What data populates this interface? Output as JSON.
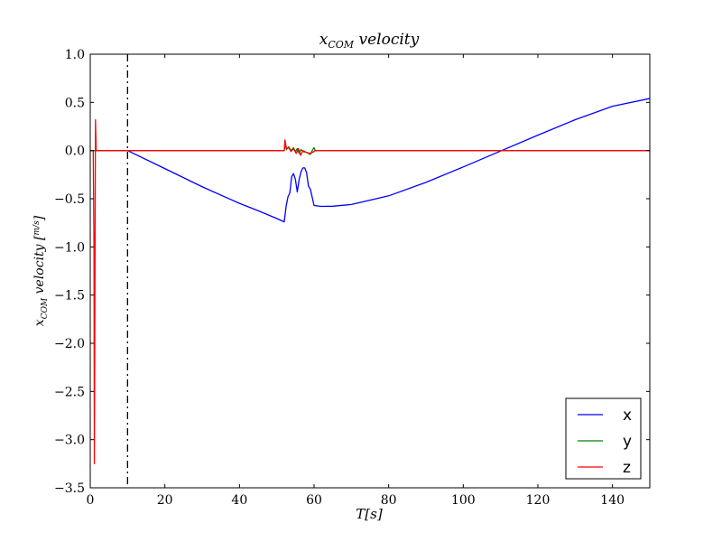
{
  "chart_data": {
    "type": "line",
    "title": "x_COM velocity",
    "title_main": "x",
    "title_sub": "COM",
    "title_rest": " velocity",
    "xlabel_main": "T",
    "xlabel_unit": "[s]",
    "ylabel_main": "x",
    "ylabel_sub": "COM",
    "ylabel_rest": " velocity [",
    "ylabel_unit_num": "m",
    "ylabel_unit_den": "s",
    "ylabel_close": "]",
    "xlim": [
      0,
      150
    ],
    "ylim": [
      -3.5,
      1.0
    ],
    "xticks": [
      0,
      20,
      40,
      60,
      80,
      100,
      120,
      140
    ],
    "yticks": [
      1.0,
      0.5,
      0.0,
      -0.5,
      -1.0,
      -1.5,
      -2.0,
      -2.5,
      -3.0,
      -3.5
    ],
    "ytick_labels": [
      "1.0",
      "0.5",
      "0.0",
      "−0.5",
      "−1.0",
      "−1.5",
      "−2.0",
      "−2.5",
      "−3.0",
      "−3.5"
    ],
    "xtick_labels": [
      "0",
      "20",
      "40",
      "60",
      "80",
      "100",
      "120",
      "140"
    ],
    "grid": false,
    "legend_position": "bottom-right",
    "vline": {
      "x": 10,
      "style": "dash-dot",
      "color": "#000000"
    },
    "series": [
      {
        "name": "x",
        "color": "#0000ff",
        "points": [
          [
            0,
            0
          ],
          [
            10,
            0
          ],
          [
            20,
            -0.187
          ],
          [
            30,
            -0.376
          ],
          [
            40,
            -0.548
          ],
          [
            45,
            -0.624
          ],
          [
            50,
            -0.705
          ],
          [
            52,
            -0.74
          ],
          [
            52.5,
            -0.58
          ],
          [
            53,
            -0.48
          ],
          [
            53.5,
            -0.44
          ],
          [
            54,
            -0.27
          ],
          [
            54.5,
            -0.24
          ],
          [
            55,
            -0.3
          ],
          [
            55.5,
            -0.43
          ],
          [
            56,
            -0.3
          ],
          [
            56.5,
            -0.22
          ],
          [
            57,
            -0.18
          ],
          [
            57.5,
            -0.18
          ],
          [
            58,
            -0.23
          ],
          [
            58.5,
            -0.37
          ],
          [
            59,
            -0.4
          ],
          [
            60,
            -0.57
          ],
          [
            62,
            -0.58
          ],
          [
            65,
            -0.578
          ],
          [
            70,
            -0.56
          ],
          [
            80,
            -0.47
          ],
          [
            90,
            -0.33
          ],
          [
            100,
            -0.17
          ],
          [
            110,
            -0.005
          ],
          [
            120,
            0.16
          ],
          [
            130,
            0.32
          ],
          [
            140,
            0.46
          ],
          [
            150,
            0.54
          ]
        ]
      },
      {
        "name": "y",
        "color": "#008000",
        "points": [
          [
            0,
            0
          ],
          [
            52,
            0
          ],
          [
            52.3,
            0.07
          ],
          [
            52.6,
            0.01
          ],
          [
            53.2,
            0.04
          ],
          [
            53.8,
            0.0
          ],
          [
            54.5,
            0.03
          ],
          [
            55,
            -0.01
          ],
          [
            55.5,
            0.02
          ],
          [
            56,
            -0.03
          ],
          [
            56.5,
            0.01
          ],
          [
            57,
            -0.01
          ],
          [
            58,
            -0.02
          ],
          [
            59,
            -0.04
          ],
          [
            59.5,
            0.0
          ],
          [
            60,
            0.03
          ],
          [
            60.3,
            0
          ],
          [
            150,
            0
          ]
        ]
      },
      {
        "name": "z",
        "color": "#ff0000",
        "points": [
          [
            0,
            0
          ],
          [
            0.8,
            0
          ],
          [
            1.0,
            -1.0
          ],
          [
            1.1,
            -3.25
          ],
          [
            1.25,
            -1.5
          ],
          [
            1.4,
            0.32
          ],
          [
            1.6,
            0
          ],
          [
            52,
            0
          ],
          [
            52.2,
            0.11
          ],
          [
            52.6,
            0.02
          ],
          [
            53.2,
            0.03
          ],
          [
            53.8,
            -0.01
          ],
          [
            54.5,
            0.02
          ],
          [
            55.2,
            -0.03
          ],
          [
            55.8,
            0.02
          ],
          [
            56.4,
            -0.05
          ],
          [
            57,
            0.0
          ],
          [
            58,
            -0.02
          ],
          [
            59,
            -0.03
          ],
          [
            60,
            -0.01
          ],
          [
            60.4,
            0
          ],
          [
            150,
            0
          ]
        ]
      }
    ]
  }
}
